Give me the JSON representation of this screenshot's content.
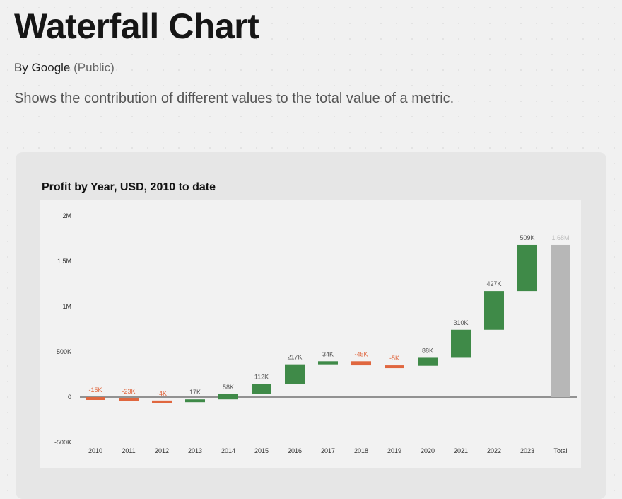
{
  "page": {
    "title": "Waterfall Chart",
    "author": "By Google",
    "visibility": "(Public)",
    "description": "Shows the contribution of different values to the total value of a metric."
  },
  "chart_data": {
    "type": "waterfall",
    "title": "Profit by Year, USD, 2010 to date",
    "categories": [
      "2010",
      "2011",
      "2012",
      "2013",
      "2014",
      "2015",
      "2016",
      "2017",
      "2018",
      "2019",
      "2020",
      "2021",
      "2022",
      "2023",
      "Total"
    ],
    "values": [
      -15000,
      -23000,
      -4000,
      17000,
      58000,
      112000,
      217000,
      34000,
      -45000,
      -5000,
      88000,
      310000,
      427000,
      509000,
      1680000
    ],
    "data_labels": [
      "-15K",
      "-23K",
      "-4K",
      "17K",
      "58K",
      "112K",
      "217K",
      "34K",
      "-45K",
      "-5K",
      "88K",
      "310K",
      "427K",
      "509K",
      "1.68M"
    ],
    "ylim": [
      -500000,
      2000000
    ],
    "yticks": [
      2000000,
      1500000,
      1000000,
      500000,
      0,
      -500000
    ],
    "ytick_labels": [
      "2M",
      "1.5M",
      "1M",
      "500K",
      "0",
      "-500K"
    ],
    "grid": false,
    "colors": {
      "increase": "#3f8a48",
      "decrease": "#e0673f",
      "total": "#b7b7b7",
      "zero_line": "#333333"
    }
  }
}
